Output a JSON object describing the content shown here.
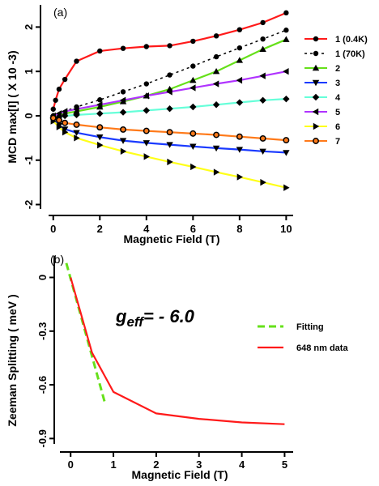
{
  "chart_data": [
    {
      "type": "line",
      "panel_label": "(a)",
      "xlabel": "Magnetic Field (T)",
      "ylabel": "MCD max[I] ( X 10 -3)",
      "xlim": [
        -0.2,
        10.3
      ],
      "ylim": [
        -2.1,
        2.5
      ],
      "xticks": [
        0,
        2,
        4,
        6,
        8,
        10
      ],
      "yticks": [
        -2,
        -1,
        0,
        1,
        2
      ],
      "legend_position": "right",
      "series": [
        {
          "name": "1 (0.4K)",
          "color": "#ff1a1a",
          "marker": "circle",
          "line": "solid",
          "x": [
            0,
            0.1,
            0.25,
            0.5,
            1,
            2,
            3,
            4,
            5,
            6,
            7,
            8,
            9,
            10
          ],
          "y": [
            0.15,
            0.35,
            0.6,
            0.82,
            1.23,
            1.46,
            1.52,
            1.56,
            1.58,
            1.68,
            1.8,
            1.94,
            2.1,
            2.32
          ]
        },
        {
          "name": "1 (70K)",
          "color": "#000000",
          "marker": "circle",
          "line": "dashed",
          "x": [
            0,
            1,
            2,
            3,
            4,
            5,
            6,
            7,
            8,
            9,
            10
          ],
          "y": [
            0.0,
            0.2,
            0.36,
            0.54,
            0.72,
            0.92,
            1.12,
            1.33,
            1.53,
            1.73,
            1.93
          ]
        },
        {
          "name": "2",
          "color": "#66e01a",
          "marker": "triangle-up",
          "line": "solid",
          "x": [
            0,
            0.25,
            0.5,
            1,
            2,
            3,
            4,
            5,
            6,
            7,
            8,
            9,
            10
          ],
          "y": [
            0.0,
            0.02,
            0.05,
            0.1,
            0.2,
            0.32,
            0.45,
            0.6,
            0.8,
            1.0,
            1.25,
            1.5,
            1.72
          ]
        },
        {
          "name": "3",
          "color": "#1a3aff",
          "marker": "triangle-down",
          "line": "solid",
          "x": [
            0,
            0.25,
            0.5,
            1,
            2,
            3,
            4,
            5,
            6,
            7,
            8,
            9,
            10
          ],
          "y": [
            -0.1,
            -0.22,
            -0.3,
            -0.38,
            -0.48,
            -0.56,
            -0.61,
            -0.65,
            -0.69,
            -0.73,
            -0.76,
            -0.8,
            -0.83
          ]
        },
        {
          "name": "4",
          "color": "#66ffd9",
          "marker": "diamond",
          "line": "solid",
          "x": [
            0,
            0.25,
            0.5,
            1,
            2,
            3,
            4,
            5,
            6,
            7,
            8,
            9,
            10
          ],
          "y": [
            -0.05,
            -0.03,
            0.0,
            0.02,
            0.05,
            0.08,
            0.12,
            0.16,
            0.2,
            0.25,
            0.3,
            0.35,
            0.38
          ]
        },
        {
          "name": "5",
          "color": "#b033ff",
          "marker": "triangle-left",
          "line": "solid",
          "x": [
            0,
            0.25,
            0.5,
            1,
            2,
            3,
            4,
            5,
            6,
            7,
            8,
            9,
            10
          ],
          "y": [
            0.0,
            0.05,
            0.1,
            0.15,
            0.25,
            0.35,
            0.45,
            0.54,
            0.63,
            0.72,
            0.8,
            0.9,
            1.0
          ]
        },
        {
          "name": "6",
          "color": "#ffff1a",
          "marker": "triangle-right",
          "line": "solid",
          "x": [
            0,
            0.25,
            0.5,
            1,
            2,
            3,
            4,
            5,
            6,
            7,
            8,
            9,
            10
          ],
          "y": [
            -0.12,
            -0.25,
            -0.37,
            -0.5,
            -0.66,
            -0.8,
            -0.92,
            -1.04,
            -1.15,
            -1.27,
            -1.38,
            -1.5,
            -1.62
          ]
        },
        {
          "name": "7",
          "color": "#ff7a1a",
          "marker": "hexagon",
          "line": "solid",
          "x": [
            0,
            0.25,
            0.5,
            1,
            2,
            3,
            4,
            5,
            6,
            7,
            8,
            9,
            10
          ],
          "y": [
            -0.05,
            -0.1,
            -0.16,
            -0.2,
            -0.26,
            -0.31,
            -0.34,
            -0.37,
            -0.4,
            -0.43,
            -0.47,
            -0.51,
            -0.55
          ]
        }
      ]
    },
    {
      "type": "line",
      "panel_label": "(b)",
      "xlabel": "Magnetic Field (T)",
      "ylabel": "Zeeman Splitting ( meV )",
      "annotation_main": "g",
      "annotation_sub": "eff",
      "annotation_rest": "= - 6.0",
      "xlim": [
        -0.25,
        5.2
      ],
      "ylim": [
        -0.93,
        0.12
      ],
      "xticks": [
        0,
        1,
        2,
        3,
        4,
        5
      ],
      "yticks": [
        0,
        -0.3,
        -0.6,
        -0.9
      ],
      "legend_position": "right",
      "series": [
        {
          "name": "Fitting",
          "color": "#66e01a",
          "line": "dashed",
          "x": [
            -0.1,
            0.8
          ],
          "y": [
            0.08,
            -0.7
          ]
        },
        {
          "name": "648 nm data",
          "color": "#ff1a1a",
          "line": "solid",
          "x": [
            0,
            0.5,
            1,
            2,
            3,
            4,
            5
          ],
          "y": [
            0,
            -0.42,
            -0.64,
            -0.76,
            -0.79,
            -0.81,
            -0.82
          ]
        }
      ]
    }
  ]
}
